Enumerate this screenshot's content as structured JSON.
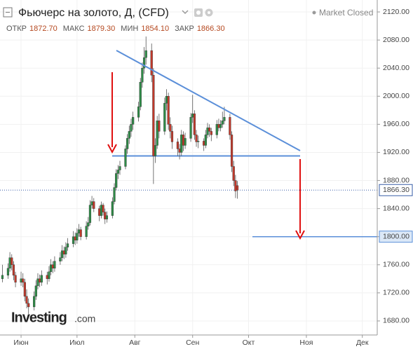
{
  "header": {
    "title": "Фьючерс на золото, Д, (CFD)",
    "status": "Market Closed",
    "ohlc": [
      {
        "label": "ОТКР",
        "value": "1872.70"
      },
      {
        "label": "МАКС",
        "value": "1879.30"
      },
      {
        "label": "МИН",
        "value": "1854.10"
      },
      {
        "label": "ЗАКР",
        "value": "1866.30"
      }
    ],
    "logo": "Investing",
    "logo_suffix": ".com"
  },
  "chart_data": {
    "type": "candlestick",
    "up_color": "#2e8b47",
    "down_color": "#c0392b",
    "grid": true,
    "xlim": [
      -11.3,
      191
    ],
    "ylim": [
      1660,
      2137
    ],
    "xticks": [
      {
        "value": 0,
        "label": "Июн"
      },
      {
        "value": 30,
        "label": "Июл"
      },
      {
        "value": 61,
        "label": "Авг"
      },
      {
        "value": 92,
        "label": "Сен"
      },
      {
        "value": 122,
        "label": "Окт"
      },
      {
        "value": 153,
        "label": "Ноя"
      },
      {
        "value": 183,
        "label": "Дек"
      }
    ],
    "yticks": [
      {
        "value": 1680,
        "label": "1680.00"
      },
      {
        "value": 1720,
        "label": "1720.00"
      },
      {
        "value": 1760,
        "label": "1760.00"
      },
      {
        "value": 1800,
        "label": "1800.00"
      },
      {
        "value": 1840,
        "label": "1840.00"
      },
      {
        "value": 1880,
        "label": "1880.00"
      },
      {
        "value": 1920,
        "label": "1920.00"
      },
      {
        "value": 1960,
        "label": "1960.00"
      },
      {
        "value": 2000,
        "label": "2000.00"
      },
      {
        "value": 2040,
        "label": "2040.00"
      },
      {
        "value": 2080,
        "label": "2080.00"
      },
      {
        "value": 2120,
        "label": "2120.00"
      }
    ],
    "last_price": {
      "value": 1866.3,
      "label": "1866.30"
    },
    "target_line": {
      "value": 1800,
      "label": "1800.00"
    },
    "support_line": 1915,
    "x": [
      -10,
      -7,
      -6,
      -5,
      -4,
      -3,
      0,
      1,
      2,
      3,
      4,
      7,
      8,
      9,
      10,
      11,
      14,
      15,
      16,
      17,
      18,
      21,
      22,
      23,
      24,
      25,
      28,
      29,
      30,
      31,
      32,
      35,
      36,
      37,
      38,
      39,
      42,
      43,
      44,
      45,
      46,
      49,
      50,
      51,
      52,
      53,
      56,
      57,
      58,
      59,
      60,
      63,
      64,
      65,
      66,
      67,
      70,
      71,
      72,
      73,
      74,
      77,
      78,
      79,
      80,
      81,
      84,
      85,
      86,
      87,
      88,
      91,
      92,
      93,
      94,
      95,
      98,
      99,
      100,
      101,
      102,
      105,
      106,
      107,
      108,
      109,
      112,
      113,
      114,
      115,
      116
    ],
    "open": [
      1740,
      1745,
      1755,
      1770,
      1760,
      1745,
      1735,
      1740,
      1735,
      1715,
      1705,
      1700,
      1715,
      1730,
      1740,
      1735,
      1745,
      1740,
      1750,
      1760,
      1755,
      1765,
      1770,
      1780,
      1775,
      1785,
      1790,
      1800,
      1795,
      1805,
      1810,
      1800,
      1815,
      1820,
      1845,
      1850,
      1840,
      1830,
      1845,
      1835,
      1825,
      1830,
      1850,
      1870,
      1890,
      1895,
      1900,
      1925,
      1940,
      1950,
      1960,
      1970,
      1985,
      2020,
      2040,
      2055,
      2065,
      2030,
      1915,
      1930,
      1965,
      1950,
      1990,
      2000,
      1960,
      1950,
      1935,
      1925,
      1920,
      1945,
      1930,
      1940,
      1970,
      1975,
      1945,
      1935,
      1936,
      1930,
      1945,
      1955,
      1950,
      1945,
      1960,
      1955,
      1960,
      1965,
      1970,
      1945,
      1900,
      1880,
      1872.7
    ],
    "high": [
      1760,
      1762,
      1778,
      1775,
      1765,
      1750,
      1750,
      1748,
      1740,
      1725,
      1712,
      1722,
      1738,
      1748,
      1746,
      1752,
      1750,
      1758,
      1768,
      1765,
      1772,
      1778,
      1788,
      1786,
      1792,
      1798,
      1808,
      1806,
      1812,
      1818,
      1814,
      1822,
      1828,
      1852,
      1858,
      1855,
      1844,
      1850,
      1848,
      1840,
      1836,
      1856,
      1876,
      1896,
      1902,
      1908,
      1930,
      1946,
      1958,
      1968,
      1978,
      1992,
      2026,
      2048,
      2070,
      2085,
      2075,
      2040,
      1940,
      1972,
      1975,
      1998,
      2010,
      2005,
      1970,
      1958,
      1940,
      1932,
      1952,
      1950,
      1948,
      1976,
      2002,
      1980,
      1952,
      1944,
      1940,
      1952,
      1962,
      1960,
      1955,
      1966,
      1968,
      1966,
      1978,
      1985,
      1975,
      1950,
      1908,
      1888,
      1879.3
    ],
    "low": [
      1735,
      1740,
      1750,
      1752,
      1738,
      1728,
      1730,
      1728,
      1708,
      1698,
      1690,
      1695,
      1710,
      1725,
      1728,
      1730,
      1732,
      1736,
      1745,
      1748,
      1750,
      1760,
      1765,
      1768,
      1770,
      1780,
      1785,
      1788,
      1790,
      1800,
      1795,
      1796,
      1810,
      1816,
      1840,
      1835,
      1822,
      1826,
      1830,
      1818,
      1820,
      1826,
      1846,
      1866,
      1882,
      1888,
      1896,
      1918,
      1932,
      1942,
      1952,
      1964,
      1980,
      2012,
      2032,
      2045,
      2020,
      1875,
      1905,
      1925,
      1940,
      1945,
      1980,
      1952,
      1940,
      1925,
      1915,
      1910,
      1915,
      1922,
      1925,
      1935,
      1962,
      1938,
      1928,
      1926,
      1922,
      1926,
      1940,
      1942,
      1936,
      1940,
      1950,
      1950,
      1955,
      1960,
      1938,
      1892,
      1872,
      1855,
      1854.1
    ],
    "close": [
      1745,
      1755,
      1770,
      1760,
      1745,
      1735,
      1740,
      1735,
      1715,
      1705,
      1700,
      1715,
      1730,
      1740,
      1735,
      1745,
      1740,
      1750,
      1760,
      1755,
      1765,
      1770,
      1780,
      1775,
      1785,
      1790,
      1800,
      1795,
      1805,
      1810,
      1800,
      1815,
      1820,
      1845,
      1850,
      1840,
      1830,
      1845,
      1835,
      1825,
      1830,
      1850,
      1870,
      1890,
      1895,
      1900,
      1925,
      1940,
      1950,
      1960,
      1970,
      1985,
      2020,
      2040,
      2055,
      2065,
      2030,
      1915,
      1930,
      1965,
      1950,
      1990,
      2000,
      1960,
      1950,
      1935,
      1925,
      1920,
      1945,
      1930,
      1940,
      1970,
      1975,
      1945,
      1935,
      1936,
      1930,
      1945,
      1955,
      1950,
      1945,
      1960,
      1955,
      1960,
      1965,
      1970,
      1945,
      1900,
      1880,
      1865,
      1866.3
    ]
  }
}
